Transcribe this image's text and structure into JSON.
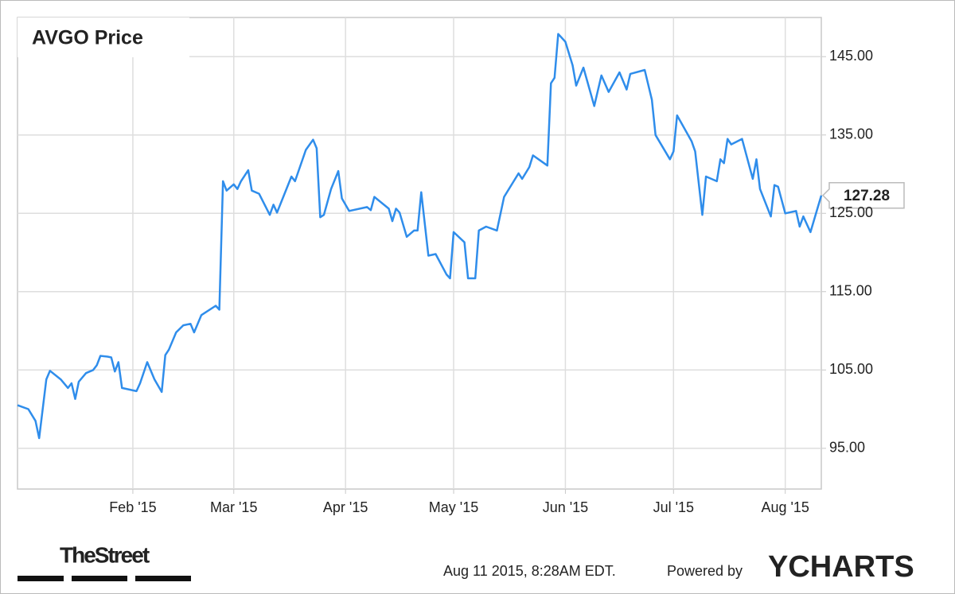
{
  "chart_data": {
    "type": "line",
    "title": "AVGO Price",
    "color": "#2f8deb",
    "grid": true,
    "x": [
      0,
      3,
      5,
      6,
      8,
      9,
      12,
      14,
      15,
      16,
      17,
      19,
      21,
      22,
      23,
      25,
      26,
      27,
      28,
      29,
      33,
      34,
      36,
      38,
      40,
      41,
      42,
      44,
      46,
      48,
      49,
      51,
      55,
      56,
      57,
      58,
      60,
      61,
      62,
      64,
      65,
      67,
      70,
      71,
      72,
      76,
      77,
      80,
      82,
      83,
      84,
      85,
      87,
      89,
      90,
      92,
      97,
      98,
      99,
      103,
      104,
      105,
      106,
      108,
      110,
      111,
      112,
      114,
      116,
      119,
      120,
      121,
      124,
      125,
      127,
      128,
      130,
      133,
      135,
      139,
      140,
      142,
      143,
      147,
      148,
      149,
      150,
      152,
      154,
      155,
      157,
      160,
      162,
      164,
      167,
      169,
      170,
      174,
      176,
      177,
      181,
      182,
      183,
      187,
      188,
      190,
      191,
      194,
      195,
      196,
      197,
      198,
      201,
      204,
      205,
      206,
      209,
      210,
      211,
      213,
      216,
      217,
      218,
      220,
      223
    ],
    "values": [
      100.5,
      100.0,
      98.5,
      96.3,
      103.8,
      104.9,
      103.8,
      102.7,
      103.3,
      101.3,
      103.5,
      104.6,
      105.0,
      105.6,
      106.8,
      106.7,
      106.6,
      104.8,
      106.0,
      102.7,
      102.3,
      103.3,
      106.0,
      103.8,
      102.2,
      106.9,
      107.6,
      109.8,
      110.7,
      110.9,
      109.8,
      112.0,
      113.2,
      112.7,
      129.1,
      127.9,
      128.7,
      128.1,
      129.1,
      130.5,
      127.9,
      127.5,
      124.8,
      126.1,
      125.1,
      129.7,
      129.1,
      133.1,
      134.4,
      133.3,
      124.5,
      124.8,
      128.1,
      130.4,
      126.9,
      125.3,
      125.8,
      125.4,
      127.1,
      125.6,
      124.0,
      125.6,
      125.1,
      122.0,
      122.8,
      122.8,
      127.7,
      119.6,
      119.8,
      117.2,
      116.7,
      122.6,
      121.3,
      116.7,
      116.7,
      122.8,
      123.3,
      122.8,
      127.1,
      130.1,
      129.4,
      130.9,
      132.4,
      131.1,
      141.6,
      142.3,
      147.9,
      146.9,
      143.9,
      141.3,
      143.6,
      138.7,
      142.6,
      140.5,
      143.0,
      140.8,
      142.8,
      143.3,
      139.5,
      135.0,
      131.9,
      132.9,
      137.5,
      134.2,
      132.9,
      124.8,
      129.7,
      129.1,
      131.9,
      131.4,
      134.5,
      133.8,
      134.5,
      129.4,
      131.9,
      128.1,
      124.6,
      128.6,
      128.4,
      125.0,
      125.3,
      123.3,
      124.6,
      122.6,
      127.28
    ],
    "xlim": [
      0,
      223
    ],
    "xticks": [
      {
        "value": 32,
        "label": "Feb '15"
      },
      {
        "value": 60,
        "label": "Mar '15"
      },
      {
        "value": 91,
        "label": "Apr '15"
      },
      {
        "value": 121,
        "label": "May '15"
      },
      {
        "value": 152,
        "label": "Jun '15"
      },
      {
        "value": 182,
        "label": "Jul '15"
      },
      {
        "value": 213,
        "label": "Aug '15"
      }
    ],
    "ylim": [
      89.8,
      150
    ],
    "yticks": [
      {
        "value": 95,
        "label": "95.00"
      },
      {
        "value": 105,
        "label": "105.00"
      },
      {
        "value": 115,
        "label": "115.00"
      },
      {
        "value": 125,
        "label": "125.00"
      },
      {
        "value": 135,
        "label": "135.00"
      },
      {
        "value": 145,
        "label": "145.00"
      }
    ],
    "logo": "TheStreet",
    "timestamp": "Aug 11 2015, 8:28AM EDT.",
    "powered_by": "Powered by",
    "brand": "YCHARTS"
  }
}
